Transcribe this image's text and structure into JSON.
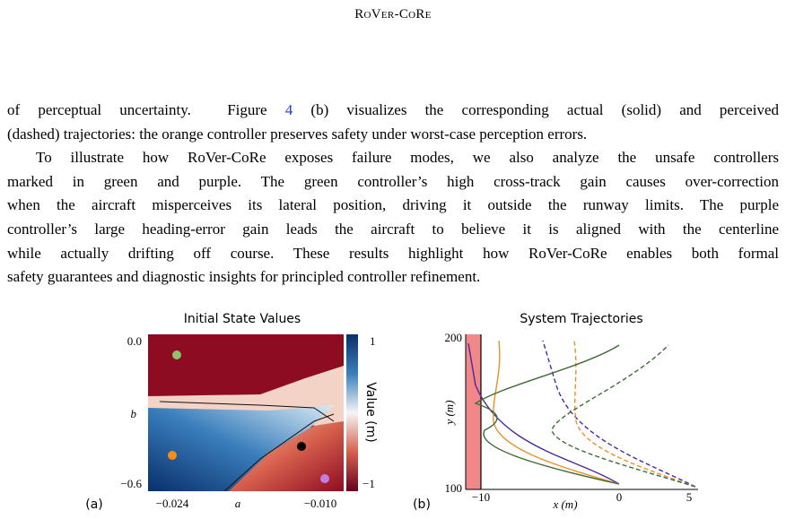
{
  "header": {
    "title": "RoVer-CoRe"
  },
  "body": {
    "lines": [
      [
        "of perceptual uncertainty.  Figure ",
        "4",
        " (b) visualizes the corresponding actual (solid) and perceived"
      ],
      "(dashed) trajectories: the orange controller preserves safety under worst-case perception errors.",
      "To illustrate how RoVer-CoRe exposes failure modes, we also analyze the unsafe controllers",
      "marked in green and purple.  The green controller’s high cross-track gain causes over-correction",
      "when the aircraft misperceives its lateral position, driving it outside the runway limits. The purple",
      "controller’s large heading-error gain leads the aircraft to believe it is aligned with the centerline",
      "while actually drifting off course.  These results highlight how RoVer-CoRe enables both formal",
      "safety guarantees and diagnostic insights for principled controller refinement."
    ]
  },
  "figure": {
    "panel_a": {
      "label": "(a)",
      "title": "Initial State Values",
      "y_ticks": [
        "0.0",
        "b",
        "−0.6"
      ],
      "x_ticks": [
        "−0.024",
        "a",
        "−0.010"
      ],
      "colorbar_ticks": [
        "1",
        "−1"
      ],
      "colorbar_label": "Value (m)"
    },
    "panel_b": {
      "label": "(b)",
      "title": "System Trajectories",
      "y_ticks": [
        "200",
        "100"
      ],
      "x_ticks": [
        "−10",
        "0",
        "5"
      ],
      "x_label": "x (m)",
      "y_label": "y (m)"
    }
  }
}
